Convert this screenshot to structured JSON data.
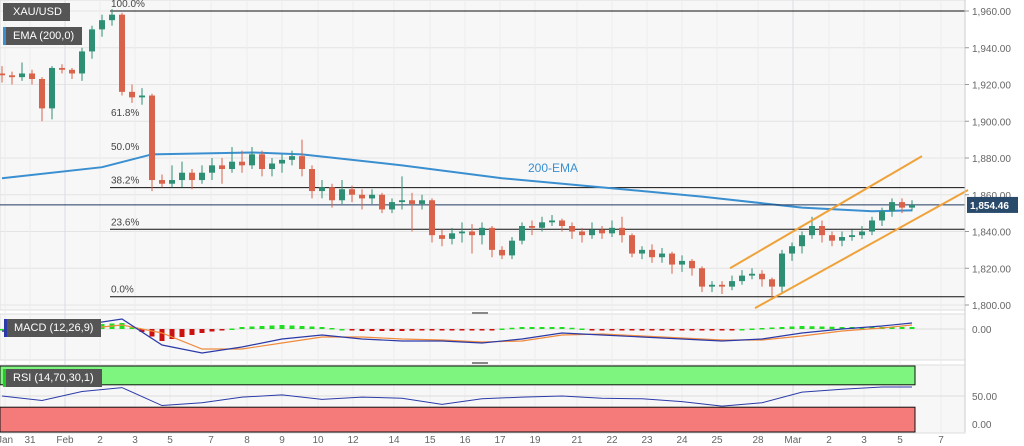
{
  "header": {
    "symbol": "XAU/USD",
    "ema_label": "EMA (200,0)",
    "macd_label": "MACD (12,26,9)",
    "rsi_label": "RSI (14,70,30,1)"
  },
  "colors": {
    "up": "#2f8f74",
    "down": "#d9634a",
    "ema": "#3a8fd0",
    "channel": "#f0a23a",
    "price_tag": "#2a4a6b",
    "macd": "#2b3aa8",
    "signal": "#f08a3c",
    "hist_up": "#22dd22",
    "hist_down": "#cc1111",
    "rsi_line": "#2b3aa8",
    "rsi_overbought": "#7ef57e",
    "rsi_oversold": "#f57a7a"
  },
  "chart_data": [
    {
      "type": "candlestick",
      "title": "XAU/USD",
      "ylim": [
        1795,
        1965
      ],
      "yticks": [
        "1,960.00",
        "1,940.00",
        "1,920.00",
        "1,900.00",
        "1,880.00",
        "1,860.00",
        "1,840.00",
        "1,820.00",
        "1,800.00"
      ],
      "ytick_values": [
        1960,
        1940,
        1920,
        1900,
        1880,
        1860,
        1840,
        1820,
        1800
      ],
      "xticks": [
        "Jan",
        "31",
        "Feb",
        "2",
        "3",
        "5",
        "7",
        "8",
        "9",
        "10",
        "12",
        "14",
        "15",
        "16",
        "17",
        "19",
        "21",
        "22",
        "23",
        "24",
        "25",
        "28",
        "Mar",
        "2",
        "3",
        "5",
        "7"
      ],
      "last_price": 1854.46,
      "last_price_label": "1,854.46",
      "ema_label_text": "200-EMA",
      "ema": [
        [
          0,
          1869
        ],
        [
          10,
          1875
        ],
        [
          15,
          1882
        ],
        [
          25,
          1883
        ],
        [
          30,
          1882
        ],
        [
          40,
          1876
        ],
        [
          50,
          1869
        ],
        [
          60,
          1864
        ],
        [
          70,
          1859
        ],
        [
          80,
          1853
        ],
        [
          87,
          1851
        ],
        [
          91,
          1851.5
        ]
      ],
      "fibonacci": {
        "high": 1960,
        "low": 1804.5,
        "levels": [
          {
            "label": "100.0%",
            "value": 1960,
            "line": true
          },
          {
            "label": "61.8%",
            "value": 1900.6,
            "line": false
          },
          {
            "label": "50.0%",
            "value": 1882.2,
            "line": false
          },
          {
            "label": "38.2%",
            "value": 1863.9,
            "line": true
          },
          {
            "label": "23.6%",
            "value": 1841.2,
            "line": true
          },
          {
            "label": "0.0%",
            "value": 1804.5,
            "line": true
          }
        ]
      },
      "channel": {
        "upper": [
          [
            72.8,
            1820
          ],
          [
            92,
            1881
          ]
        ],
        "lower": [
          [
            75.3,
            1798.3
          ],
          [
            96.6,
            1862.6
          ]
        ]
      },
      "candles_ohlc": [
        [
          1926,
          1930,
          1921,
          1925
        ],
        [
          1925,
          1927,
          1920,
          1924
        ],
        [
          1924,
          1932,
          1922,
          1926
        ],
        [
          1926,
          1928,
          1920,
          1923
        ],
        [
          1923,
          1924,
          1900,
          1907
        ],
        [
          1907,
          1930,
          1901,
          1929
        ],
        [
          1929,
          1931,
          1926,
          1928
        ],
        [
          1928,
          1929,
          1923,
          1926
        ],
        [
          1926,
          1940,
          1922,
          1938
        ],
        [
          1938,
          1952,
          1934,
          1950
        ],
        [
          1950,
          1958,
          1946,
          1955
        ],
        [
          1955,
          1961,
          1952,
          1958
        ],
        [
          1958,
          1959,
          1914,
          1916
        ],
        [
          1916,
          1920,
          1910,
          1913
        ],
        [
          1913,
          1918,
          1909,
          1914
        ],
        [
          1914,
          1915,
          1862,
          1868
        ],
        [
          1868,
          1871,
          1864,
          1866
        ],
        [
          1866,
          1876,
          1864,
          1868
        ],
        [
          1868,
          1878,
          1864,
          1872
        ],
        [
          1872,
          1874,
          1863,
          1868
        ],
        [
          1868,
          1876,
          1866,
          1872
        ],
        [
          1872,
          1880,
          1868,
          1876
        ],
        [
          1876,
          1880,
          1866,
          1874
        ],
        [
          1874,
          1886,
          1872,
          1878
        ],
        [
          1878,
          1884,
          1872,
          1876
        ],
        [
          1876,
          1886,
          1874,
          1882
        ],
        [
          1882,
          1884,
          1870,
          1874
        ],
        [
          1874,
          1880,
          1870,
          1877
        ],
        [
          1877,
          1882,
          1872,
          1879
        ],
        [
          1879,
          1884,
          1876,
          1881
        ],
        [
          1881,
          1890,
          1870,
          1874
        ],
        [
          1874,
          1876,
          1858,
          1862
        ],
        [
          1862,
          1868,
          1858,
          1864
        ],
        [
          1864,
          1866,
          1853,
          1857
        ],
        [
          1857,
          1868,
          1855,
          1863
        ],
        [
          1863,
          1865,
          1856,
          1860
        ],
        [
          1860,
          1863,
          1852,
          1858
        ],
        [
          1858,
          1863,
          1855,
          1860
        ],
        [
          1860,
          1861,
          1850,
          1852
        ],
        [
          1852,
          1858,
          1850,
          1856
        ],
        [
          1856,
          1870,
          1852,
          1857
        ],
        [
          1857,
          1861,
          1840,
          1855
        ],
        [
          1855,
          1860,
          1852,
          1857
        ],
        [
          1857,
          1858,
          1834,
          1838
        ],
        [
          1838,
          1841,
          1832,
          1836
        ],
        [
          1836,
          1842,
          1833,
          1839
        ],
        [
          1839,
          1845,
          1834,
          1840
        ],
        [
          1840,
          1844,
          1828,
          1838
        ],
        [
          1838,
          1845,
          1833,
          1842
        ],
        [
          1842,
          1843,
          1826,
          1830
        ],
        [
          1830,
          1832,
          1825,
          1827
        ],
        [
          1827,
          1837,
          1825,
          1835
        ],
        [
          1835,
          1845,
          1833,
          1843
        ],
        [
          1843,
          1846,
          1838,
          1842
        ],
        [
          1842,
          1848,
          1840,
          1845
        ],
        [
          1845,
          1849,
          1843,
          1846
        ],
        [
          1846,
          1847,
          1840,
          1843
        ],
        [
          1843,
          1845,
          1836,
          1840
        ],
        [
          1840,
          1842,
          1834,
          1838
        ],
        [
          1838,
          1845,
          1836,
          1841
        ],
        [
          1841,
          1843,
          1836,
          1839
        ],
        [
          1839,
          1846,
          1837,
          1842
        ],
        [
          1842,
          1848,
          1834,
          1838
        ],
        [
          1838,
          1839,
          1826,
          1828
        ],
        [
          1828,
          1832,
          1825,
          1830
        ],
        [
          1830,
          1833,
          1823,
          1826
        ],
        [
          1826,
          1831,
          1823,
          1828
        ],
        [
          1828,
          1829,
          1817,
          1822
        ],
        [
          1822,
          1827,
          1818,
          1824
        ],
        [
          1824,
          1825,
          1816,
          1820
        ],
        [
          1820,
          1821,
          1807,
          1810
        ],
        [
          1810,
          1813,
          1807,
          1811
        ],
        [
          1811,
          1813,
          1806,
          1810
        ],
        [
          1810,
          1816,
          1808,
          1813
        ],
        [
          1813,
          1819,
          1811,
          1816
        ],
        [
          1816,
          1820,
          1814,
          1817
        ],
        [
          1817,
          1819,
          1810,
          1814
        ],
        [
          1814,
          1815,
          1804,
          1810
        ],
        [
          1810,
          1830,
          1806,
          1828
        ],
        [
          1828,
          1834,
          1824,
          1832
        ],
        [
          1832,
          1840,
          1828,
          1838
        ],
        [
          1838,
          1848,
          1836,
          1843
        ],
        [
          1843,
          1846,
          1834,
          1838
        ],
        [
          1838,
          1840,
          1832,
          1835
        ],
        [
          1835,
          1840,
          1832,
          1837
        ],
        [
          1837,
          1841,
          1835,
          1838
        ],
        [
          1838,
          1843,
          1836,
          1840
        ],
        [
          1840,
          1848,
          1838,
          1846
        ],
        [
          1846,
          1853,
          1843,
          1851
        ],
        [
          1851,
          1858,
          1848,
          1856
        ],
        [
          1856,
          1858,
          1850,
          1853
        ],
        [
          1853,
          1857,
          1851,
          1854.46
        ]
      ]
    },
    {
      "type": "line",
      "title": "MACD (12,26,9)",
      "yticks": [
        "0.00"
      ],
      "macd": [
        [
          0,
          -1
        ],
        [
          4,
          -2
        ],
        [
          8,
          2
        ],
        [
          12,
          5
        ],
        [
          16,
          -8
        ],
        [
          20,
          -12
        ],
        [
          24,
          -9
        ],
        [
          28,
          -5
        ],
        [
          32,
          -3
        ],
        [
          36,
          -5
        ],
        [
          40,
          -6
        ],
        [
          44,
          -6
        ],
        [
          48,
          -7
        ],
        [
          52,
          -5
        ],
        [
          56,
          -2
        ],
        [
          60,
          -3
        ],
        [
          64,
          -4
        ],
        [
          68,
          -5
        ],
        [
          72,
          -6
        ],
        [
          76,
          -5
        ],
        [
          80,
          -2
        ],
        [
          84,
          0
        ],
        [
          88,
          1.5
        ],
        [
          91,
          3
        ]
      ],
      "signal": [
        [
          0,
          -1
        ],
        [
          4,
          -1.5
        ],
        [
          8,
          0
        ],
        [
          12,
          2
        ],
        [
          16,
          -2
        ],
        [
          20,
          -10
        ],
        [
          24,
          -10
        ],
        [
          28,
          -7
        ],
        [
          32,
          -4
        ],
        [
          36,
          -4
        ],
        [
          40,
          -5
        ],
        [
          44,
          -5.5
        ],
        [
          48,
          -6.5
        ],
        [
          52,
          -6
        ],
        [
          56,
          -3
        ],
        [
          60,
          -2.5
        ],
        [
          64,
          -3.5
        ],
        [
          68,
          -4.5
        ],
        [
          72,
          -5.5
        ],
        [
          76,
          -5.5
        ],
        [
          80,
          -3.5
        ],
        [
          84,
          -1
        ],
        [
          88,
          0.5
        ],
        [
          91,
          2
        ]
      ]
    },
    {
      "type": "line",
      "title": "RSI (14,70,30,1)",
      "ylim": [
        0,
        100
      ],
      "yticks": [
        "50.00",
        "0.00"
      ],
      "overbought": 70,
      "oversold": 30,
      "rsi": [
        [
          0,
          50
        ],
        [
          4,
          42
        ],
        [
          8,
          58
        ],
        [
          12,
          65
        ],
        [
          16,
          33
        ],
        [
          20,
          38
        ],
        [
          24,
          48
        ],
        [
          28,
          52
        ],
        [
          32,
          44
        ],
        [
          36,
          48
        ],
        [
          40,
          46
        ],
        [
          44,
          35
        ],
        [
          48,
          45
        ],
        [
          52,
          48
        ],
        [
          56,
          50
        ],
        [
          60,
          46
        ],
        [
          64,
          45
        ],
        [
          68,
          40
        ],
        [
          72,
          32
        ],
        [
          76,
          38
        ],
        [
          80,
          57
        ],
        [
          84,
          62
        ],
        [
          88,
          66
        ],
        [
          91,
          66
        ]
      ]
    }
  ]
}
